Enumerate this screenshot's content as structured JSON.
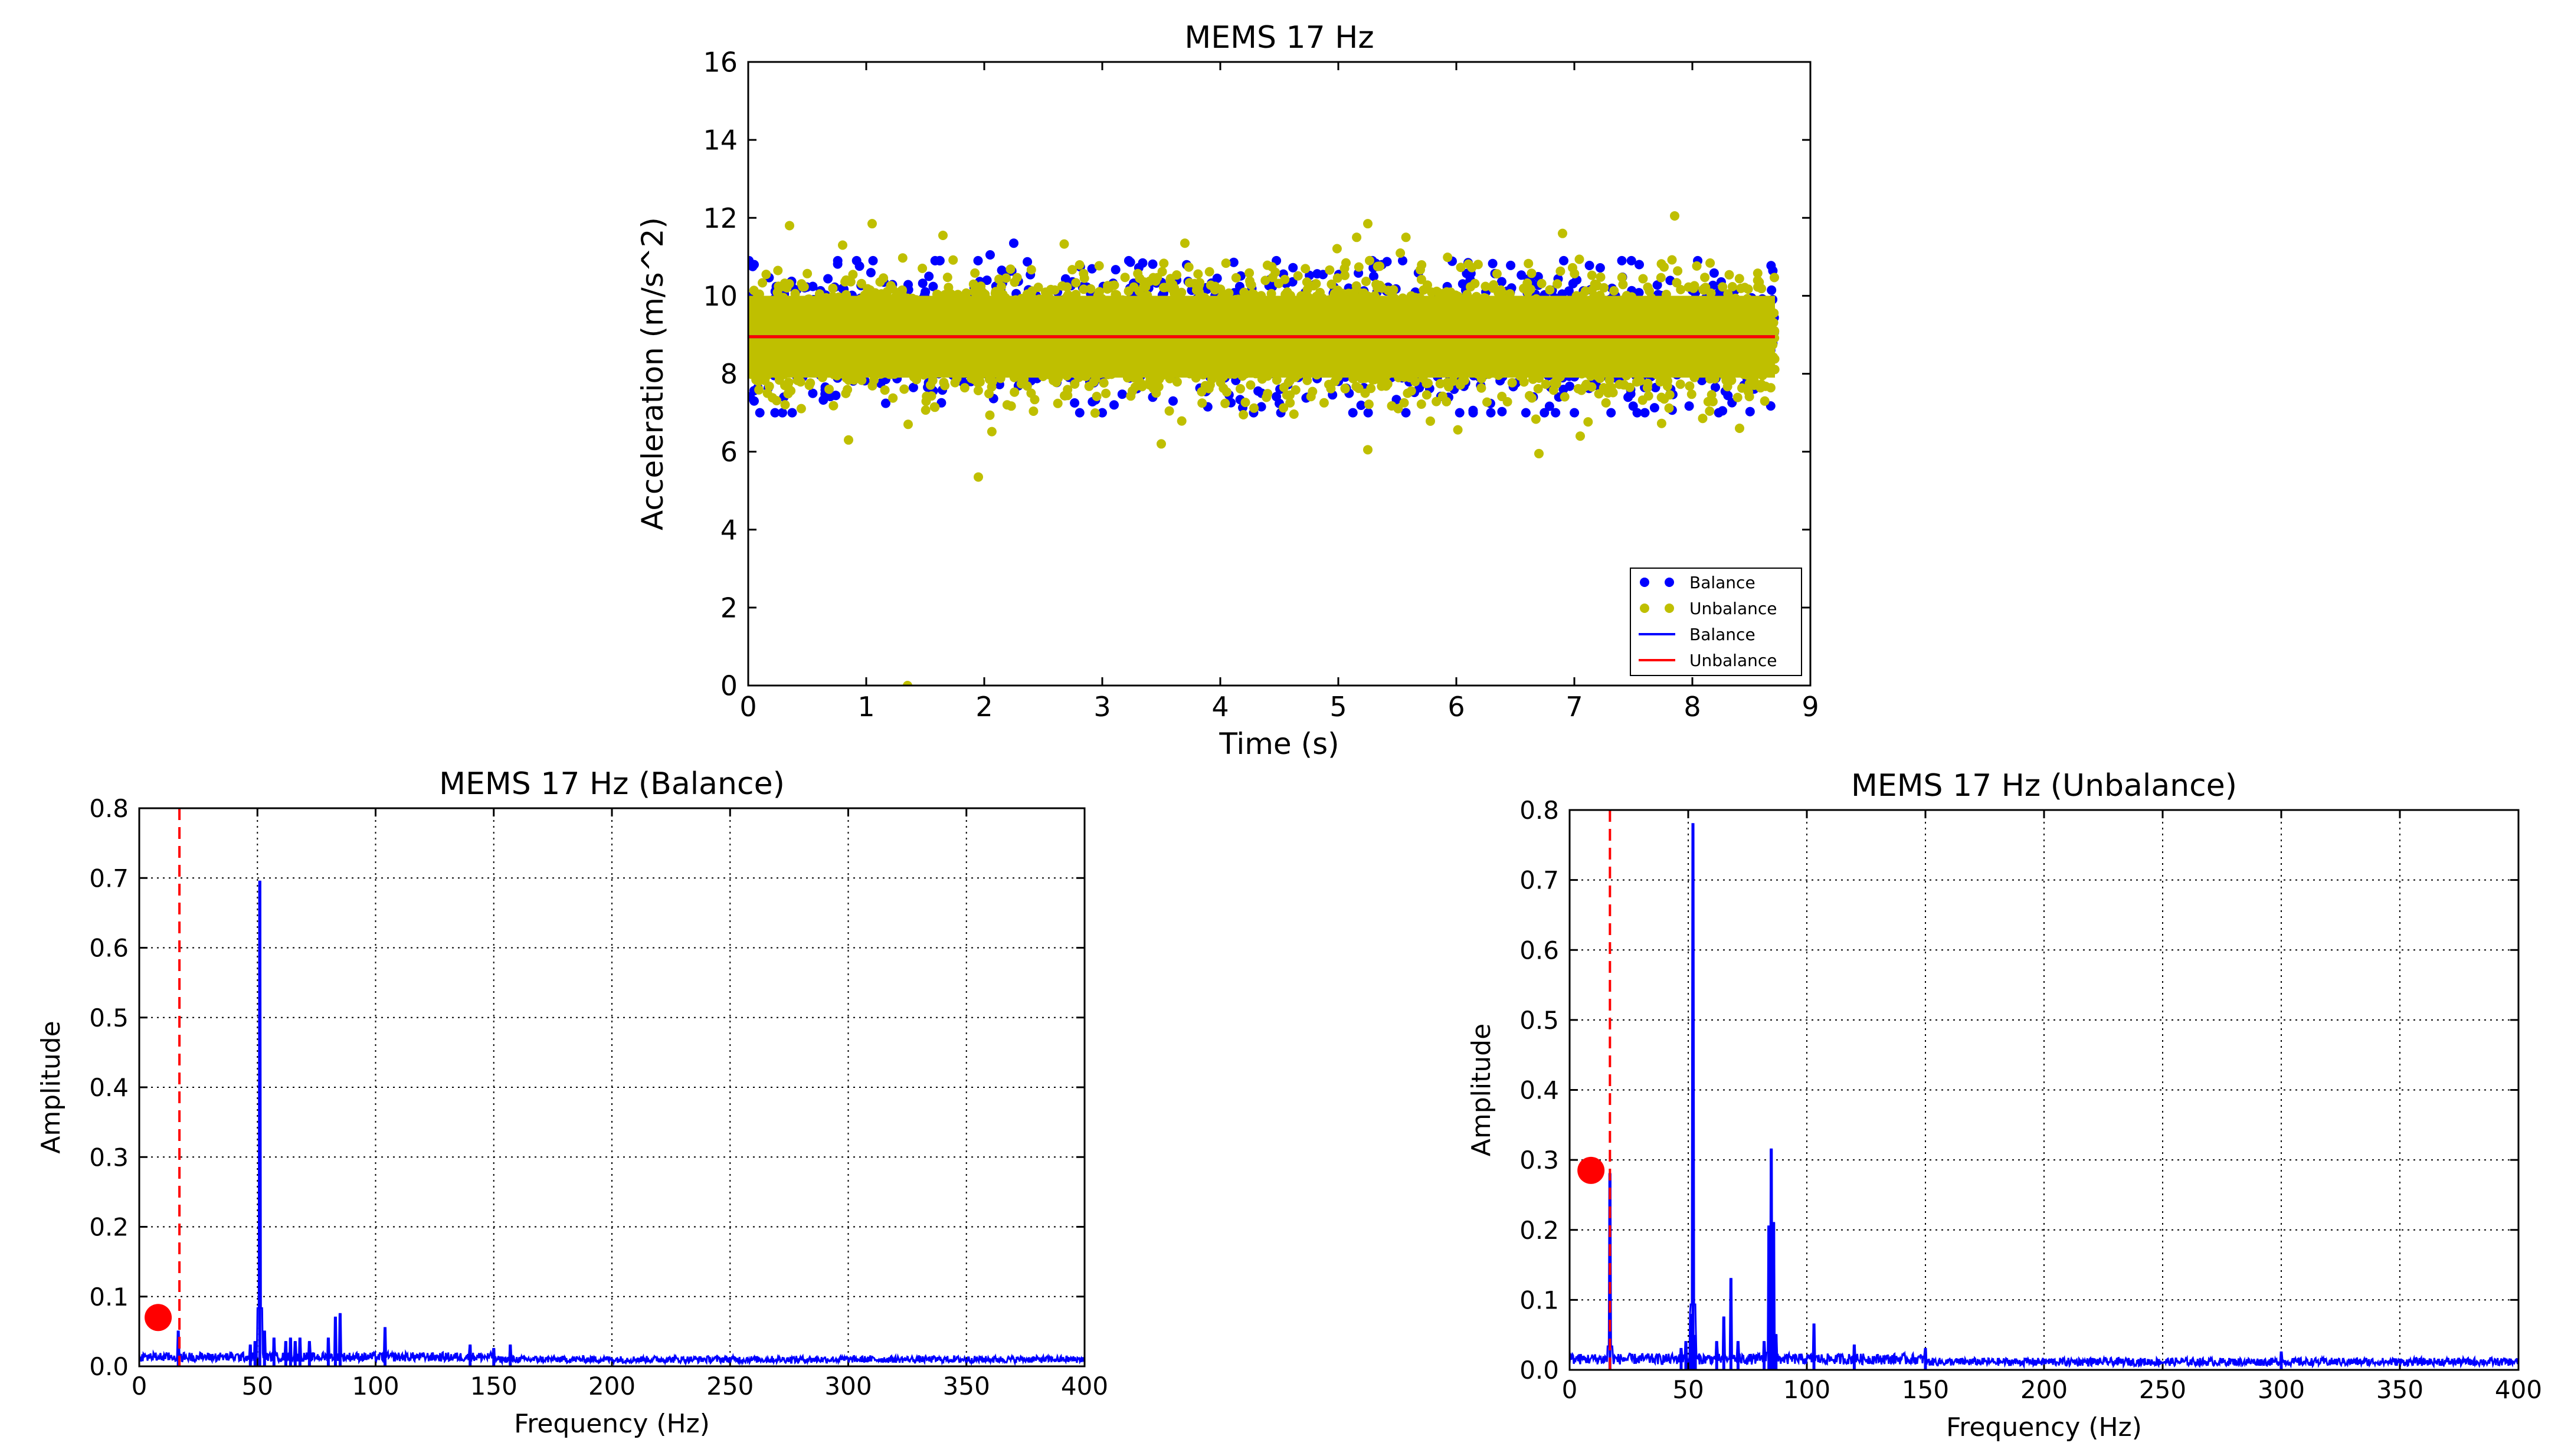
{
  "chart_data": [
    {
      "type": "scatter",
      "title": "MEMS 17 Hz",
      "xlabel": "Time (s)",
      "ylabel": "Acceleration (m/s^2)",
      "xlim": [
        0,
        9
      ],
      "ylim": [
        0,
        16
      ],
      "xticks": [
        "0",
        "1",
        "2",
        "3",
        "4",
        "5",
        "6",
        "7",
        "8",
        "9"
      ],
      "yticks": [
        "0",
        "2",
        "4",
        "6",
        "8",
        "10",
        "12",
        "14",
        "16"
      ],
      "grid": false,
      "legend_position": "lower-right",
      "legend": [
        {
          "label": "Balance",
          "marker": "dots",
          "color": "#0000ff"
        },
        {
          "label": "Unbalance",
          "marker": "dots",
          "color": "#bfbf00"
        },
        {
          "label": "Balance",
          "marker": "line",
          "color": "#0000ff"
        },
        {
          "label": "Unbalance",
          "marker": "line",
          "color": "#ff0000"
        }
      ],
      "series": [
        {
          "name": "Balance",
          "kind": "scatter",
          "color": "#0000ff",
          "x_range": [
            0,
            8.7
          ],
          "mean": 8.95,
          "band": [
            7.0,
            10.9
          ],
          "outliers": [
            [
              2.25,
              11.35
            ],
            [
              2.05,
              11.05
            ],
            [
              0.05,
              10.8
            ],
            [
              0.05,
              7.3
            ],
            [
              6.1,
              10.85
            ],
            [
              7.55,
              10.8
            ],
            [
              1.15,
              10.35
            ],
            [
              5.3,
              10.5
            ],
            [
              4.35,
              7.5
            ],
            [
              3.1,
              7.2
            ],
            [
              3.6,
              7.3
            ]
          ]
        },
        {
          "name": "Unbalance",
          "kind": "scatter",
          "color": "#bfbf00",
          "x_range": [
            0,
            8.7
          ],
          "mean": 8.95,
          "band": [
            6.5,
            11.5
          ],
          "outliers": [
            [
              0.35,
              11.8
            ],
            [
              1.05,
              11.85
            ],
            [
              1.65,
              11.55
            ],
            [
              7.85,
              12.05
            ],
            [
              5.25,
              11.85
            ],
            [
              6.9,
              11.6
            ],
            [
              0.8,
              11.3
            ],
            [
              3.7,
              11.35
            ],
            [
              1.95,
              5.35
            ],
            [
              1.35,
              0.0
            ],
            [
              3.5,
              6.2
            ],
            [
              6.7,
              5.95
            ],
            [
              5.25,
              6.05
            ],
            [
              7.05,
              6.4
            ],
            [
              8.4,
              6.6
            ],
            [
              0.85,
              6.3
            ]
          ]
        },
        {
          "name": "Balance",
          "kind": "line",
          "color": "#0000ff",
          "x": [
            0,
            8.7
          ],
          "y": [
            8.95,
            8.95
          ]
        },
        {
          "name": "Unbalance",
          "kind": "line",
          "color": "#ff0000",
          "x": [
            0,
            8.7
          ],
          "y": [
            8.95,
            8.95
          ]
        }
      ]
    },
    {
      "type": "line",
      "title": "MEMS 17 Hz (Balance)",
      "xlabel": "Frequency (Hz)",
      "ylabel": "Amplitude",
      "xlim": [
        0,
        400
      ],
      "ylim": [
        0,
        0.8
      ],
      "xticks": [
        "0",
        "50",
        "100",
        "150",
        "200",
        "250",
        "300",
        "350",
        "400"
      ],
      "yticks": [
        "0.0",
        "0.1",
        "0.2",
        "0.3",
        "0.4",
        "0.5",
        "0.6",
        "0.7",
        "0.8"
      ],
      "grid": true,
      "color": "#0000ff",
      "noise_floor": 0.013,
      "peaks": [
        [
          16.5,
          0.05
        ],
        [
          47,
          0.03
        ],
        [
          49,
          0.035
        ],
        [
          51,
          0.695
        ],
        [
          53,
          0.05
        ],
        [
          57,
          0.04
        ],
        [
          62,
          0.035
        ],
        [
          64,
          0.04
        ],
        [
          66,
          0.035
        ],
        [
          68,
          0.04
        ],
        [
          72,
          0.035
        ],
        [
          80,
          0.04
        ],
        [
          83,
          0.07
        ],
        [
          85,
          0.075
        ],
        [
          104,
          0.055
        ],
        [
          140,
          0.03
        ],
        [
          150,
          0.025
        ],
        [
          157,
          0.03
        ]
      ],
      "vline": {
        "x": 17,
        "color": "#ff0000",
        "style": "dashed"
      },
      "marker": {
        "x": 8,
        "y": 0.07,
        "color": "#ff0000"
      }
    },
    {
      "type": "line",
      "title": "MEMS 17 Hz (Unbalance)",
      "xlabel": "Frequency (Hz)",
      "ylabel": "Amplitude",
      "xlim": [
        0,
        400
      ],
      "ylim": [
        0,
        0.8
      ],
      "xticks": [
        "0",
        "50",
        "100",
        "150",
        "200",
        "250",
        "300",
        "350",
        "400"
      ],
      "yticks": [
        "0.0",
        "0.1",
        "0.2",
        "0.3",
        "0.4",
        "0.5",
        "0.6",
        "0.7",
        "0.8"
      ],
      "grid": true,
      "color": "#0000ff",
      "noise_floor": 0.015,
      "peaks": [
        [
          17,
          0.28
        ],
        [
          47,
          0.03
        ],
        [
          49,
          0.04
        ],
        [
          51,
          0.08
        ],
        [
          52,
          0.78
        ],
        [
          53,
          0.05
        ],
        [
          62,
          0.04
        ],
        [
          65,
          0.075
        ],
        [
          68,
          0.13
        ],
        [
          71,
          0.04
        ],
        [
          82,
          0.04
        ],
        [
          84,
          0.205
        ],
        [
          85,
          0.315
        ],
        [
          86,
          0.21
        ],
        [
          87,
          0.05
        ],
        [
          103,
          0.065
        ],
        [
          120,
          0.035
        ],
        [
          150,
          0.03
        ],
        [
          300,
          0.025
        ]
      ],
      "vline": {
        "x": 17,
        "color": "#ff0000",
        "style": "dashed"
      },
      "marker": {
        "x": 9,
        "y": 0.285,
        "color": "#ff0000"
      }
    }
  ]
}
